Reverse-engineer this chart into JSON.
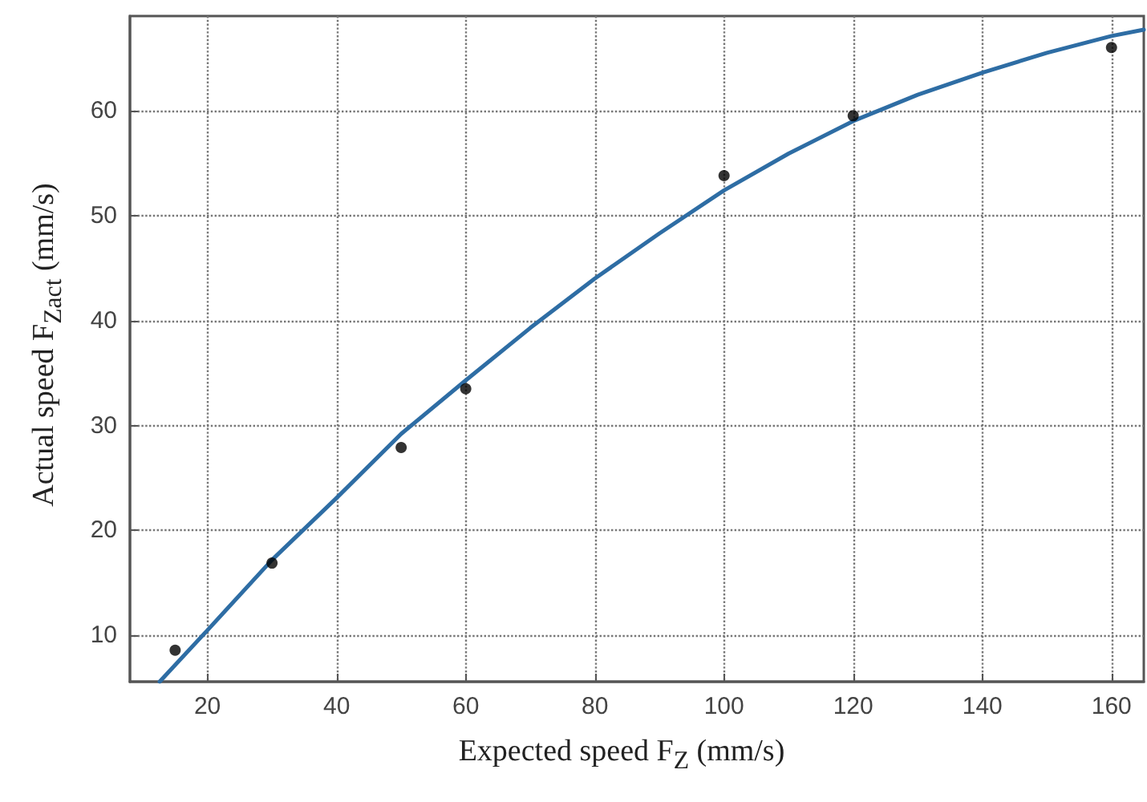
{
  "chart_data": {
    "type": "scatter",
    "xlabel": "Expected speed  F$_{Z}$  (mm/s)",
    "ylabel": "Actual speed  F$_{Zact}$  (mm/s)",
    "xlim": [
      8,
      165
    ],
    "ylim": [
      5.6,
      69
    ],
    "xticks": [
      20,
      40,
      60,
      80,
      100,
      120,
      140,
      160
    ],
    "yticks": [
      10,
      20,
      30,
      40,
      50,
      60
    ],
    "grid": true,
    "series": [
      {
        "color": "#000000",
        "marker": "circle",
        "x": [
          15,
          30,
          50,
          60,
          100,
          120,
          160
        ],
        "values": [
          8.6,
          16.9,
          27.9,
          33.5,
          53.8,
          59.5,
          66.0
        ]
      },
      {
        "type": "line",
        "color": "#2e6da4",
        "marker": "none",
        "line_style": "solid",
        "x": [
          12.6,
          20,
          30,
          40,
          50,
          60,
          70,
          80,
          90,
          100,
          110,
          120,
          130,
          140,
          150,
          160,
          165
        ],
        "values": [
          5.6,
          10.5,
          17.2,
          23.1,
          29.2,
          34.3,
          39.3,
          44.0,
          48.3,
          52.4,
          55.9,
          59.0,
          61.5,
          63.6,
          65.5,
          67.1,
          67.7
        ]
      }
    ]
  }
}
